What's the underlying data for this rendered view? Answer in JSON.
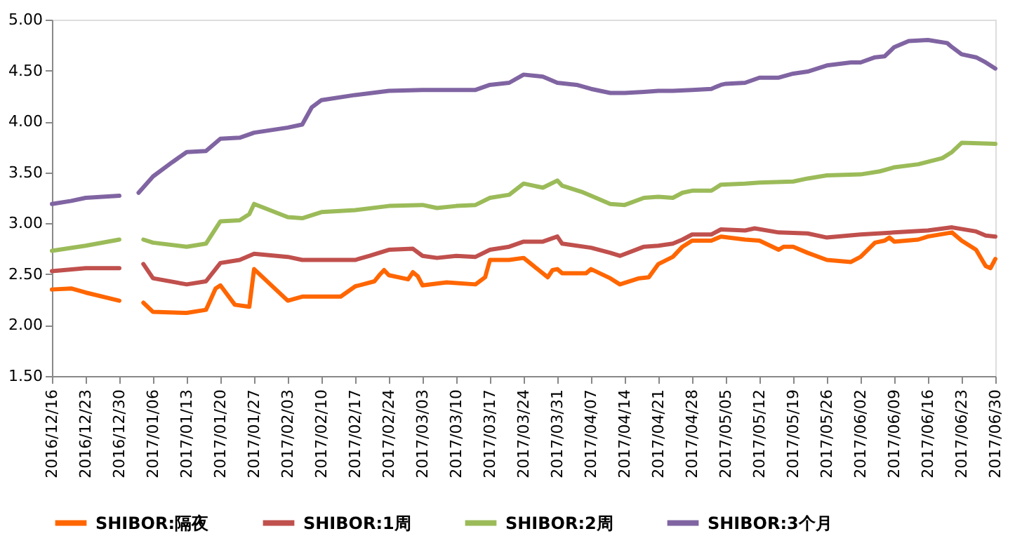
{
  "chart_data": {
    "type": "line",
    "legend": "bottom",
    "grid": false,
    "xlim": [
      "2016-12-16",
      "2017-06-30"
    ],
    "xticks": [
      {
        "value": "2016-12-16",
        "label": "2016/12/16"
      },
      {
        "value": "2016-12-23",
        "label": "2016/12/23"
      },
      {
        "value": "2016-12-30",
        "label": "2016/12/30"
      },
      {
        "value": "2017-01-06",
        "label": "2017/01/06"
      },
      {
        "value": "2017-01-13",
        "label": "2017/01/13"
      },
      {
        "value": "2017-01-20",
        "label": "2017/01/20"
      },
      {
        "value": "2017-01-27",
        "label": "2017/01/27"
      },
      {
        "value": "2017-02-03",
        "label": "2017/02/03"
      },
      {
        "value": "2017-02-10",
        "label": "2017/02/10"
      },
      {
        "value": "2017-02-17",
        "label": "2017/02/17"
      },
      {
        "value": "2017-02-24",
        "label": "2017/02/24"
      },
      {
        "value": "2017-03-03",
        "label": "2017/03/03"
      },
      {
        "value": "2017-03-10",
        "label": "2017/03/10"
      },
      {
        "value": "2017-03-17",
        "label": "2017/03/17"
      },
      {
        "value": "2017-03-24",
        "label": "2017/03/24"
      },
      {
        "value": "2017-03-31",
        "label": "2017/03/31"
      },
      {
        "value": "2017-04-07",
        "label": "2017/04/07"
      },
      {
        "value": "2017-04-14",
        "label": "2017/04/14"
      },
      {
        "value": "2017-04-21",
        "label": "2017/04/21"
      },
      {
        "value": "2017-04-28",
        "label": "2017/04/28"
      },
      {
        "value": "2017-05-05",
        "label": "2017/05/05"
      },
      {
        "value": "2017-05-12",
        "label": "2017/05/12"
      },
      {
        "value": "2017-05-19",
        "label": "2017/05/19"
      },
      {
        "value": "2017-05-26",
        "label": "2017/05/26"
      },
      {
        "value": "2017-06-02",
        "label": "2017/06/02"
      },
      {
        "value": "2017-06-09",
        "label": "2017/06/09"
      },
      {
        "value": "2017-06-16",
        "label": "2017/06/16"
      },
      {
        "value": "2017-06-23",
        "label": "2017/06/23"
      },
      {
        "value": "2017-06-30",
        "label": "2017/06/30"
      }
    ],
    "ylim": [
      1.5,
      5.0
    ],
    "yticks": [
      {
        "value": 1.5,
        "label": "1.50"
      },
      {
        "value": 2.0,
        "label": "2.00"
      },
      {
        "value": 2.5,
        "label": "2.50"
      },
      {
        "value": 3.0,
        "label": "3.00"
      },
      {
        "value": 3.5,
        "label": "3.50"
      },
      {
        "value": 4.0,
        "label": "4.00"
      },
      {
        "value": 4.5,
        "label": "4.50"
      },
      {
        "value": 5.0,
        "label": "5.00"
      }
    ],
    "series": [
      {
        "name": "SHIBOR:隔夜",
        "color": "#ff6600",
        "x": [
          "2016-12-16",
          "2016-12-20",
          "2016-12-23",
          "2016-12-30",
          "2017-01-01",
          "2017-01-04",
          "2017-01-06",
          "2017-01-13",
          "2017-01-17",
          "2017-01-19",
          "2017-01-20",
          "2017-01-23",
          "2017-01-26",
          "2017-01-27",
          "2017-02-03",
          "2017-02-06",
          "2017-02-10",
          "2017-02-14",
          "2017-02-17",
          "2017-02-21",
          "2017-02-22",
          "2017-02-23",
          "2017-02-24",
          "2017-02-28",
          "2017-03-01",
          "2017-03-02",
          "2017-03-03",
          "2017-03-08",
          "2017-03-14",
          "2017-03-16",
          "2017-03-17",
          "2017-03-21",
          "2017-03-24",
          "2017-03-29",
          "2017-03-30",
          "2017-03-31",
          "2017-04-01",
          "2017-04-06",
          "2017-04-07",
          "2017-04-11",
          "2017-04-13",
          "2017-04-17",
          "2017-04-19",
          "2017-04-21",
          "2017-04-24",
          "2017-04-26",
          "2017-04-28",
          "2017-05-02",
          "2017-05-04",
          "2017-05-09",
          "2017-05-12",
          "2017-05-16",
          "2017-05-17",
          "2017-05-19",
          "2017-05-22",
          "2017-05-26",
          "2017-05-31",
          "2017-06-02",
          "2017-06-05",
          "2017-06-07",
          "2017-06-08",
          "2017-06-09",
          "2017-06-14",
          "2017-06-16",
          "2017-06-21",
          "2017-06-23",
          "2017-06-26",
          "2017-06-28",
          "2017-06-29",
          "2017-06-30"
        ],
        "values": [
          2.35,
          2.36,
          2.32,
          2.24,
          null,
          2.22,
          2.13,
          2.12,
          2.15,
          2.36,
          2.39,
          2.2,
          2.18,
          2.55,
          2.24,
          2.28,
          2.28,
          2.28,
          2.38,
          2.43,
          2.49,
          2.54,
          2.49,
          2.45,
          2.52,
          2.48,
          2.39,
          2.42,
          2.4,
          2.47,
          2.64,
          2.64,
          2.66,
          2.47,
          2.54,
          2.55,
          2.51,
          2.51,
          2.55,
          2.46,
          2.4,
          2.46,
          2.47,
          2.6,
          2.67,
          2.77,
          2.83,
          2.83,
          2.87,
          2.84,
          2.83,
          2.74,
          2.77,
          2.77,
          2.71,
          2.64,
          2.62,
          2.67,
          2.81,
          2.83,
          2.86,
          2.82,
          2.84,
          2.87,
          2.91,
          2.83,
          2.74,
          2.58,
          2.56,
          2.65
        ]
      },
      {
        "name": "SHIBOR:1周",
        "color": "#c0504d",
        "x": [
          "2016-12-16",
          "2016-12-23",
          "2016-12-30",
          "2017-01-01",
          "2017-01-04",
          "2017-01-06",
          "2017-01-13",
          "2017-01-17",
          "2017-01-20",
          "2017-01-24",
          "2017-01-27",
          "2017-02-03",
          "2017-02-06",
          "2017-02-10",
          "2017-02-17",
          "2017-02-20",
          "2017-02-24",
          "2017-03-01",
          "2017-03-03",
          "2017-03-06",
          "2017-03-10",
          "2017-03-14",
          "2017-03-17",
          "2017-03-21",
          "2017-03-24",
          "2017-03-28",
          "2017-03-31",
          "2017-04-01",
          "2017-04-07",
          "2017-04-11",
          "2017-04-13",
          "2017-04-18",
          "2017-04-21",
          "2017-04-24",
          "2017-04-26",
          "2017-04-28",
          "2017-05-02",
          "2017-05-04",
          "2017-05-09",
          "2017-05-11",
          "2017-05-16",
          "2017-05-22",
          "2017-05-26",
          "2017-06-02",
          "2017-06-09",
          "2017-06-16",
          "2017-06-21",
          "2017-06-26",
          "2017-06-28",
          "2017-06-30"
        ],
        "values": [
          2.53,
          2.56,
          2.56,
          null,
          2.6,
          2.46,
          2.4,
          2.43,
          2.61,
          2.64,
          2.7,
          2.67,
          2.64,
          2.64,
          2.64,
          2.68,
          2.74,
          2.75,
          2.68,
          2.66,
          2.68,
          2.67,
          2.74,
          2.77,
          2.82,
          2.82,
          2.87,
          2.8,
          2.76,
          2.71,
          2.68,
          2.77,
          2.78,
          2.8,
          2.84,
          2.89,
          2.89,
          2.94,
          2.93,
          2.95,
          2.91,
          2.9,
          2.86,
          2.89,
          2.91,
          2.93,
          2.96,
          2.92,
          2.88,
          2.87
        ]
      },
      {
        "name": "SHIBOR:2周",
        "color": "#9bbb59",
        "x": [
          "2016-12-16",
          "2016-12-23",
          "2016-12-30",
          "2017-01-01",
          "2017-01-04",
          "2017-01-06",
          "2017-01-13",
          "2017-01-17",
          "2017-01-20",
          "2017-01-24",
          "2017-01-26",
          "2017-01-27",
          "2017-02-03",
          "2017-02-06",
          "2017-02-10",
          "2017-02-17",
          "2017-02-24",
          "2017-03-03",
          "2017-03-06",
          "2017-03-10",
          "2017-03-14",
          "2017-03-17",
          "2017-03-21",
          "2017-03-24",
          "2017-03-28",
          "2017-03-31",
          "2017-04-01",
          "2017-04-05",
          "2017-04-07",
          "2017-04-11",
          "2017-04-14",
          "2017-04-18",
          "2017-04-21",
          "2017-04-24",
          "2017-04-26",
          "2017-04-28",
          "2017-05-02",
          "2017-05-04",
          "2017-05-09",
          "2017-05-12",
          "2017-05-19",
          "2017-05-22",
          "2017-05-26",
          "2017-06-02",
          "2017-06-06",
          "2017-06-09",
          "2017-06-14",
          "2017-06-19",
          "2017-06-21",
          "2017-06-23",
          "2017-06-30"
        ],
        "values": [
          2.73,
          2.78,
          2.84,
          null,
          2.84,
          2.81,
          2.77,
          2.8,
          3.02,
          3.03,
          3.09,
          3.19,
          3.06,
          3.05,
          3.11,
          3.13,
          3.17,
          3.18,
          3.15,
          3.17,
          3.18,
          3.25,
          3.28,
          3.39,
          3.35,
          3.42,
          3.37,
          3.31,
          3.27,
          3.19,
          3.18,
          3.25,
          3.26,
          3.25,
          3.3,
          3.32,
          3.32,
          3.38,
          3.39,
          3.4,
          3.41,
          3.44,
          3.47,
          3.48,
          3.51,
          3.55,
          3.58,
          3.64,
          3.7,
          3.79,
          3.78
        ]
      },
      {
        "name": "SHIBOR:3个月",
        "color": "#8064a2",
        "x": [
          "2016-12-16",
          "2016-12-20",
          "2016-12-23",
          "2016-12-30",
          "2017-01-01",
          "2017-01-03",
          "2017-01-06",
          "2017-01-10",
          "2017-01-13",
          "2017-01-17",
          "2017-01-20",
          "2017-01-24",
          "2017-01-27",
          "2017-02-03",
          "2017-02-06",
          "2017-02-08",
          "2017-02-10",
          "2017-02-17",
          "2017-02-24",
          "2017-03-03",
          "2017-03-10",
          "2017-03-14",
          "2017-03-17",
          "2017-03-21",
          "2017-03-24",
          "2017-03-28",
          "2017-03-31",
          "2017-04-04",
          "2017-04-07",
          "2017-04-11",
          "2017-04-14",
          "2017-04-18",
          "2017-04-21",
          "2017-04-24",
          "2017-04-28",
          "2017-05-02",
          "2017-05-04",
          "2017-05-05",
          "2017-05-09",
          "2017-05-12",
          "2017-05-16",
          "2017-05-19",
          "2017-05-22",
          "2017-05-26",
          "2017-05-31",
          "2017-06-02",
          "2017-06-05",
          "2017-06-07",
          "2017-06-09",
          "2017-06-12",
          "2017-06-16",
          "2017-06-20",
          "2017-06-21",
          "2017-06-23",
          "2017-06-26",
          "2017-06-28",
          "2017-06-30"
        ],
        "values": [
          3.19,
          3.22,
          3.25,
          3.27,
          null,
          3.3,
          3.46,
          3.6,
          3.7,
          3.71,
          3.83,
          3.84,
          3.89,
          3.94,
          3.97,
          4.14,
          4.21,
          4.26,
          4.3,
          4.31,
          4.31,
          4.31,
          4.36,
          4.38,
          4.46,
          4.44,
          4.38,
          4.36,
          4.32,
          4.28,
          4.28,
          4.29,
          4.3,
          4.3,
          4.31,
          4.32,
          4.36,
          4.37,
          4.38,
          4.43,
          4.43,
          4.47,
          4.49,
          4.55,
          4.58,
          4.58,
          4.63,
          4.64,
          4.73,
          4.79,
          4.8,
          4.77,
          4.73,
          4.66,
          4.63,
          4.58,
          4.52
        ]
      }
    ]
  }
}
